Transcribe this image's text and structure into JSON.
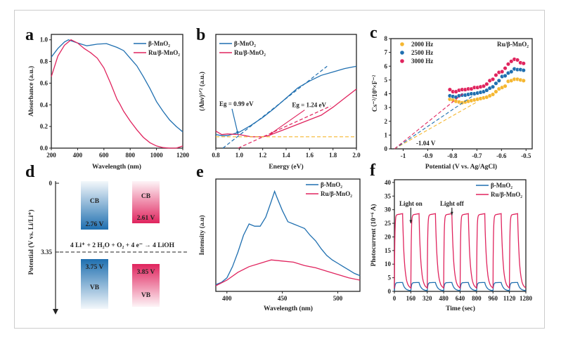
{
  "colors": {
    "blue": "#1f6fb0",
    "pink": "#e0245e",
    "orange": "#f5b731",
    "frame": "#cccccc"
  },
  "chart_data": [
    {
      "panel": "a",
      "type": "line",
      "xlabel": "Wavelength (nm)",
      "ylabel": "Absorbance (a.u.)",
      "xlim": [
        200,
        1200
      ],
      "ylim": [
        0,
        1.05
      ],
      "xticks": [
        200,
        400,
        600,
        800,
        1000,
        1200
      ],
      "yticks": [
        0.0,
        0.2,
        0.4,
        0.6,
        0.8,
        1.0
      ],
      "legend": "top-right",
      "series": [
        {
          "name": "β-MnO₂",
          "color": "#1f6fb0",
          "x": [
            200,
            250,
            300,
            330,
            400,
            470,
            550,
            620,
            700,
            750,
            800,
            850,
            900,
            950,
            1000,
            1050,
            1100,
            1150,
            1200
          ],
          "y": [
            0.84,
            0.92,
            0.98,
            1.0,
            0.97,
            0.945,
            0.96,
            0.965,
            0.93,
            0.9,
            0.83,
            0.76,
            0.66,
            0.55,
            0.43,
            0.34,
            0.26,
            0.2,
            0.15
          ]
        },
        {
          "name": "Ru/β-MnO₂",
          "color": "#e0245e",
          "x": [
            200,
            250,
            300,
            350,
            400,
            450,
            500,
            550,
            600,
            650,
            700,
            720,
            750,
            800,
            850,
            900,
            950,
            1000,
            1050,
            1100,
            1150,
            1200
          ],
          "y": [
            0.66,
            0.85,
            0.95,
            1.0,
            0.97,
            0.92,
            0.88,
            0.83,
            0.74,
            0.6,
            0.45,
            0.41,
            0.34,
            0.25,
            0.17,
            0.1,
            0.05,
            0.02,
            0.005,
            0,
            0,
            0.02
          ]
        }
      ]
    },
    {
      "panel": "b",
      "type": "line",
      "xlabel": "Energy (eV)",
      "ylabel": "(Ahν)¹ᐟ² (a.u.)",
      "xlim": [
        0.8,
        2.0
      ],
      "ylim": [
        0,
        1
      ],
      "xticks": [
        0.8,
        1.0,
        1.2,
        1.4,
        1.6,
        1.8,
        2.0
      ],
      "legend": "top-left",
      "series": [
        {
          "name": "β-MnO₂",
          "color": "#1f6fb0",
          "x": [
            0.8,
            0.85,
            0.9,
            1.0,
            1.1,
            1.2,
            1.3,
            1.4,
            1.5,
            1.6,
            1.7,
            1.8,
            1.9,
            2.0
          ],
          "y": [
            0.12,
            0.11,
            0.11,
            0.14,
            0.2,
            0.27,
            0.35,
            0.44,
            0.53,
            0.59,
            0.64,
            0.67,
            0.7,
            0.72
          ]
        },
        {
          "name": "Ru/β-MnO₂",
          "color": "#e0245e",
          "x": [
            0.8,
            0.85,
            0.9,
            1.0,
            1.1,
            1.2,
            1.25,
            1.3,
            1.4,
            1.5,
            1.6,
            1.7,
            1.8,
            1.9,
            2.0
          ],
          "y": [
            0.15,
            0.12,
            0.125,
            0.12,
            0.1,
            0.1,
            0.11,
            0.13,
            0.17,
            0.21,
            0.25,
            0.29,
            0.36,
            0.44,
            0.52
          ]
        }
      ],
      "tangents": [
        {
          "color": "#1f6fb0",
          "from": [
            0.86,
            0
          ],
          "to": [
            1.75,
            0.72
          ]
        },
        {
          "color": "#e0245e",
          "from": [
            0.99,
            0
          ],
          "to": [
            1.78,
            0.37
          ]
        },
        {
          "color": "#f5b731",
          "from": [
            0.8,
            0.1
          ],
          "to": [
            2.0,
            0.1
          ]
        }
      ],
      "annotations": [
        {
          "text": "Eg = 0.99 eV",
          "color": "#1f6fb0",
          "at": [
            0.83,
            0.37
          ],
          "arrow_to": [
            0.99,
            0.12
          ]
        },
        {
          "text": "Eg = 1.24 eV",
          "color": "#e0245e",
          "at": [
            1.45,
            0.36
          ],
          "arrow_to": [
            1.26,
            0.12
          ]
        }
      ]
    },
    {
      "panel": "c",
      "type": "scatter",
      "xlabel": "Potential (V vs. Ag/AgCl)",
      "ylabel": "Cs⁻²/10⁹×F⁻²",
      "xlim": [
        -1.05,
        -0.475
      ],
      "ylim": [
        0,
        8
      ],
      "xticks": [
        -1.0,
        -0.9,
        -0.8,
        -0.7,
        -0.6,
        -0.5
      ],
      "yticks": [
        0,
        1,
        2,
        3,
        4,
        5,
        6,
        7,
        8
      ],
      "legend": "top-left",
      "label": "Ru/β-MnO₂",
      "intercept_label": "-1.04 V",
      "x": [
        -0.81,
        -0.7975,
        -0.785,
        -0.7725,
        -0.76,
        -0.7475,
        -0.735,
        -0.7225,
        -0.71,
        -0.6975,
        -0.685,
        -0.6725,
        -0.66,
        -0.6475,
        -0.635,
        -0.6225,
        -0.61,
        -0.5975,
        -0.585,
        -0.5725,
        -0.56,
        -0.5475,
        -0.535,
        -0.5225,
        -0.51
      ],
      "series": [
        {
          "name": "2000 Hz",
          "color": "#f5b731",
          "y": [
            3.6,
            3.55,
            3.45,
            3.4,
            3.35,
            3.4,
            3.45,
            3.5,
            3.55,
            3.6,
            3.65,
            3.7,
            3.75,
            3.85,
            3.95,
            4.15,
            4.35,
            4.45,
            4.55,
            4.9,
            4.95,
            5.05,
            5.05,
            5.0,
            4.95
          ],
          "fit": {
            "from": [
              -1.035,
              0
            ],
            "to": [
              -0.7,
              3.4
            ]
          }
        },
        {
          "name": "2500 Hz",
          "color": "#1f6fb0",
          "y": [
            3.85,
            3.8,
            3.75,
            3.85,
            3.9,
            3.9,
            3.95,
            4.0,
            4.0,
            4.05,
            4.1,
            4.15,
            4.25,
            4.4,
            4.5,
            4.75,
            4.95,
            5.25,
            5.3,
            5.5,
            5.6,
            5.8,
            5.75,
            5.75,
            5.7
          ],
          "fit": {
            "from": [
              -1.035,
              0
            ],
            "to": [
              -0.72,
              3.8
            ]
          }
        },
        {
          "name": "3000 Hz",
          "color": "#e0245e",
          "y": [
            4.3,
            4.15,
            4.15,
            4.25,
            4.3,
            4.3,
            4.35,
            4.35,
            4.45,
            4.45,
            4.5,
            4.55,
            4.7,
            4.95,
            5.05,
            5.35,
            5.55,
            5.6,
            5.85,
            6.15,
            6.35,
            6.5,
            6.45,
            6.25,
            6.2
          ],
          "fit": {
            "from": [
              -1.035,
              0
            ],
            "to": [
              -0.75,
              4.1
            ]
          }
        }
      ]
    },
    {
      "panel": "d",
      "type": "diagram",
      "ylabel": "Potential (V vs. Li/Li⁺)",
      "yticks": [
        0,
        3.35
      ],
      "equation": "4 Li⁺ + 2 H₂O + O₂ + 4 e⁻ → 4 LiOH",
      "bands": [
        {
          "material": "β-MnO₂",
          "color": "#1f6fb0",
          "cb_label": "CB",
          "cb": "2.76 V",
          "vb_label": "VB",
          "vb": "3.75 V"
        },
        {
          "material": "Ru/β-MnO₂",
          "color": "#e0245e",
          "cb_label": "CB",
          "cb": "2.61 V",
          "vb_label": "VB",
          "vb": "3.85 V"
        }
      ]
    },
    {
      "panel": "e",
      "type": "line",
      "xlabel": "Wavelength (nm)",
      "ylabel": "Intensity (a.u)",
      "xlim": [
        390,
        520
      ],
      "ylim": [
        0,
        1
      ],
      "xticks": [
        400,
        450,
        500
      ],
      "legend": "top-right",
      "series": [
        {
          "name": "β-MnO₂",
          "color": "#1f6fb0",
          "x": [
            390,
            395,
            400,
            405,
            410,
            415,
            420,
            425,
            430,
            435,
            440,
            443,
            445,
            450,
            455,
            460,
            465,
            470,
            475,
            480,
            485,
            490,
            495,
            500,
            505,
            510,
            515,
            520
          ],
          "y": [
            0.06,
            0.08,
            0.12,
            0.22,
            0.35,
            0.5,
            0.6,
            0.58,
            0.58,
            0.66,
            0.8,
            0.89,
            0.84,
            0.72,
            0.62,
            0.6,
            0.58,
            0.56,
            0.5,
            0.45,
            0.38,
            0.32,
            0.28,
            0.25,
            0.22,
            0.19,
            0.16,
            0.14
          ]
        },
        {
          "name": "Ru/β-MnO₂",
          "color": "#e0245e",
          "x": [
            390,
            400,
            410,
            420,
            430,
            440,
            450,
            460,
            470,
            480,
            490,
            500,
            510,
            520
          ],
          "y": [
            0.05,
            0.1,
            0.17,
            0.22,
            0.25,
            0.28,
            0.27,
            0.26,
            0.23,
            0.21,
            0.18,
            0.15,
            0.12,
            0.1
          ]
        }
      ]
    },
    {
      "panel": "f",
      "type": "line",
      "xlabel": "Time (sec)",
      "ylabel": "Photocurrent (10⁻⁶ A)",
      "xlim": [
        0,
        1280
      ],
      "ylim": [
        0,
        41
      ],
      "xticks": [
        0,
        160,
        320,
        480,
        640,
        800,
        960,
        1120,
        1280
      ],
      "yticks": [
        0,
        5,
        10,
        15,
        20,
        25,
        30,
        35,
        40
      ],
      "legend": "top-right",
      "annotations": [
        {
          "text": "Light on",
          "at": [
            160,
            31.5
          ],
          "arrow_to": [
            160,
            25
          ]
        },
        {
          "text": "Light off",
          "at": [
            560,
            31.5
          ],
          "arrow_to": [
            560,
            28
          ]
        }
      ],
      "light_on_times": [
        0,
        160,
        320,
        480,
        640,
        800,
        960,
        1120
      ],
      "on_duration": 80,
      "series": [
        {
          "name": "β-MnO₂",
          "color": "#1f6fb0",
          "on_level": 3.2,
          "off_level": 0.2
        },
        {
          "name": "Ru/β-MnO₂",
          "color": "#e0245e",
          "on_level": 28,
          "off_level": 1
        }
      ]
    }
  ]
}
